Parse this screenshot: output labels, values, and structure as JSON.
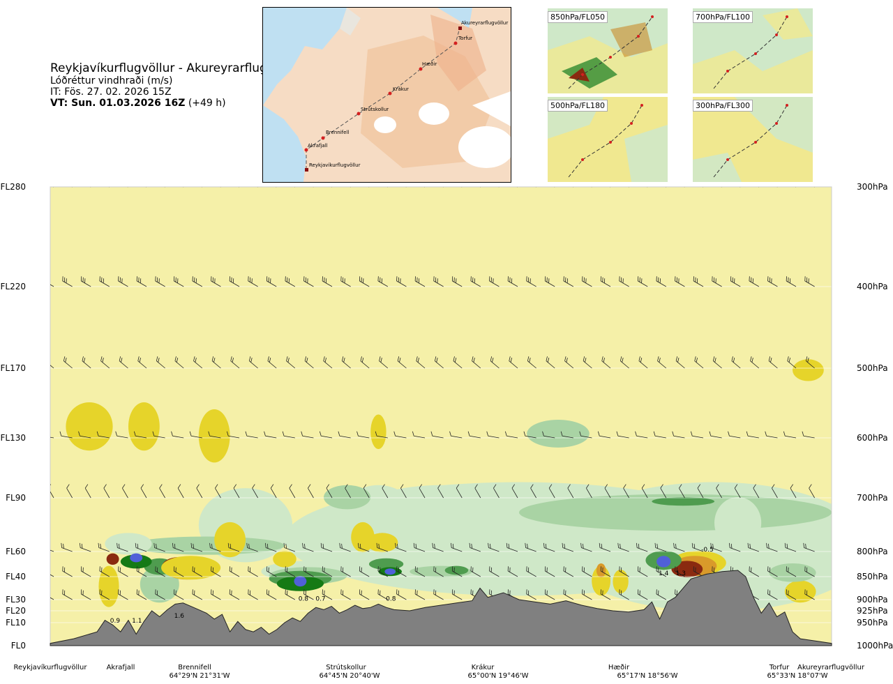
{
  "header": {
    "title": "Reykjavíkurflugvöllur - Akureyrarflugvöllur",
    "variable": "Lóðréttur vindhraði (m/s)",
    "issue_time": "IT: Fös. 27. 02. 2026 15Z",
    "valid_time": "VT: Sun. 01.03.2026 16Z",
    "lead": "(+49 h)"
  },
  "map": {
    "places": [
      "Akureyrarflugvöllur",
      "Torfur",
      "Hæðir",
      "Krákur",
      "Strútskollur",
      "Brennifell",
      "Akrafjall",
      "Reykjavíkurflugvöllur"
    ]
  },
  "minimaps": [
    {
      "label": "850hPa/FL050"
    },
    {
      "label": "700hPa/FL100"
    },
    {
      "label": "500hPa/FL180"
    },
    {
      "label": "300hPa/FL300"
    }
  ],
  "colors": {
    "cream": "#f5f0a8",
    "lightgreen": "#cfe8c8",
    "midgreen": "#a9d3a4",
    "green": "#4f9c4f",
    "darkgreen": "#157a15",
    "blue": "#5060d8",
    "yellow": "#e6d42a",
    "orange": "#d99a2a",
    "brown": "#8a2a10",
    "terrain": "#808080"
  },
  "chart_data": {
    "type": "heatmap",
    "title": "Lóðréttur vindhraði (m/s)",
    "x_range": [
      0,
      100
    ],
    "y_range_ft": [
      0,
      28000
    ],
    "flight_levels": [
      {
        "label": "FL0",
        "ft": 0
      },
      {
        "label": "FL10",
        "ft": 1000
      },
      {
        "label": "FL20",
        "ft": 2000
      },
      {
        "label": "FL30",
        "ft": 3000
      },
      {
        "label": "FL40",
        "ft": 4000
      },
      {
        "label": "FL60",
        "ft": 6000
      },
      {
        "label": "FL90",
        "ft": 9000
      },
      {
        "label": "FL130",
        "ft": 13000
      },
      {
        "label": "FL170",
        "ft": 17000
      },
      {
        "label": "FL220",
        "ft": 22000
      },
      {
        "label": "FL280",
        "ft": 28000
      }
    ],
    "pressure_levels": [
      {
        "label": "1000hPa",
        "ft": 0
      },
      {
        "label": "950hPa",
        "ft": 1000
      },
      {
        "label": "925hPa",
        "ft": 2000
      },
      {
        "label": "900hPa",
        "ft": 3000
      },
      {
        "label": "850hPa",
        "ft": 4000
      },
      {
        "label": "800hPa",
        "ft": 6000
      },
      {
        "label": "700hPa",
        "ft": 9000
      },
      {
        "label": "600hPa",
        "ft": 13000
      },
      {
        "label": "500hPa",
        "ft": 17000
      },
      {
        "label": "400hPa",
        "ft": 22000
      },
      {
        "label": "300hPa",
        "ft": 28000
      }
    ],
    "locations": [
      {
        "name": "Reykjavíkurflugvöllur",
        "x": 0,
        "coord": ""
      },
      {
        "name": "Akrafjall",
        "x": 9.3,
        "coord": ""
      },
      {
        "name": "Brennifell",
        "x": 18.8,
        "coord": "64°29'N 21°31'W"
      },
      {
        "name": "Strútskollur",
        "x": 38.7,
        "coord": "64°45'N 20°40'W"
      },
      {
        "name": "Krákur",
        "x": 57.5,
        "coord": "65°00'N 19°46'W"
      },
      {
        "name": "Hæðir",
        "x": 73.5,
        "coord": "65°17'N 18°56'W"
      },
      {
        "name": "Torfur",
        "x": 93.5,
        "coord": "65°33'N 18°07'W"
      },
      {
        "name": "Akureyrarflugvöllur",
        "x": 100,
        "coord": "65°33'N 18°07'W"
      }
    ],
    "labels": [
      {
        "text": "0.9",
        "x": 8.3,
        "ft": 1000
      },
      {
        "text": "1.1",
        "x": 11.1,
        "ft": 1000
      },
      {
        "text": "1.6",
        "x": 16.5,
        "ft": 1400
      },
      {
        "text": "0.8",
        "x": 32.4,
        "ft": 2900
      },
      {
        "text": "0.7",
        "x": 34.6,
        "ft": 2900
      },
      {
        "text": "0.8",
        "x": 43.6,
        "ft": 2900
      },
      {
        "text": "1.4",
        "x": 78.5,
        "ft": 4100
      },
      {
        "text": "1.3",
        "x": 80.7,
        "ft": 4100
      },
      {
        "text": "-0.5",
        "x": 84.1,
        "ft": 6000
      }
    ],
    "terrain_ft": [
      [
        0,
        100
      ],
      [
        3,
        300
      ],
      [
        6,
        600
      ],
      [
        7,
        1200
      ],
      [
        8,
        900
      ],
      [
        9,
        600
      ],
      [
        10,
        1200
      ],
      [
        11,
        500
      ],
      [
        12,
        1100
      ],
      [
        13,
        2000
      ],
      [
        14,
        1500
      ],
      [
        15,
        2100
      ],
      [
        16,
        2600
      ],
      [
        17,
        2700
      ],
      [
        18,
        2400
      ],
      [
        19,
        2100
      ],
      [
        20,
        1800
      ],
      [
        21,
        1300
      ],
      [
        22,
        1700
      ],
      [
        23,
        600
      ],
      [
        24,
        1100
      ],
      [
        25,
        700
      ],
      [
        26,
        600
      ],
      [
        27,
        800
      ],
      [
        28,
        500
      ],
      [
        29,
        700
      ],
      [
        30,
        1000
      ],
      [
        31,
        1400
      ],
      [
        32,
        1100
      ],
      [
        33,
        1800
      ],
      [
        34,
        2300
      ],
      [
        35,
        2100
      ],
      [
        36,
        2400
      ],
      [
        37,
        1800
      ],
      [
        38,
        2100
      ],
      [
        39,
        2500
      ],
      [
        40,
        2200
      ],
      [
        41,
        2300
      ],
      [
        42,
        2600
      ],
      [
        43,
        2300
      ],
      [
        44,
        2100
      ],
      [
        46,
        2000
      ],
      [
        48,
        2300
      ],
      [
        50,
        2500
      ],
      [
        52,
        2700
      ],
      [
        54,
        2900
      ],
      [
        55,
        3500
      ],
      [
        56,
        3100
      ],
      [
        58,
        3300
      ],
      [
        60,
        3000
      ],
      [
        62,
        2800
      ],
      [
        64,
        2600
      ],
      [
        66,
        2900
      ],
      [
        68,
        2500
      ],
      [
        70,
        2200
      ],
      [
        72,
        2000
      ],
      [
        74,
        1900
      ],
      [
        76,
        2100
      ],
      [
        77,
        2800
      ],
      [
        78,
        1300
      ],
      [
        79,
        2800
      ],
      [
        80,
        3100
      ],
      [
        82,
        3900
      ],
      [
        84,
        4200
      ],
      [
        86,
        4400
      ],
      [
        88,
        4500
      ],
      [
        89,
        4000
      ],
      [
        90,
        3100
      ],
      [
        91,
        1800
      ],
      [
        92,
        2700
      ],
      [
        93,
        1500
      ],
      [
        94,
        1900
      ],
      [
        95,
        600
      ],
      [
        96,
        300
      ],
      [
        98,
        200
      ],
      [
        100,
        100
      ]
    ]
  }
}
